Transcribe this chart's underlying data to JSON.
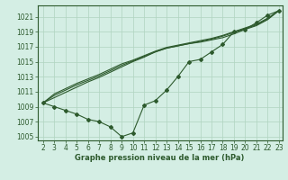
{
  "title": "Graphe pression niveau de la mer (hPa)",
  "background_color": "#d4eee4",
  "grid_color": "#b0d4c0",
  "line_color": "#2d5a2d",
  "marker_color": "#2d5a2d",
  "xlim": [
    2,
    23
  ],
  "ylim": [
    1004.5,
    1022.5
  ],
  "xticks": [
    2,
    3,
    4,
    5,
    6,
    7,
    8,
    9,
    10,
    11,
    12,
    13,
    14,
    15,
    16,
    17,
    18,
    19,
    20,
    21,
    22,
    23
  ],
  "yticks": [
    1005,
    1007,
    1009,
    1011,
    1013,
    1015,
    1017,
    1019,
    1021
  ],
  "x_main": [
    2,
    3,
    4,
    5,
    6,
    7,
    8,
    9,
    10,
    11,
    12,
    13,
    14,
    15,
    16,
    17,
    18,
    19,
    20,
    21,
    22,
    23
  ],
  "y_main": [
    1009.5,
    1009.0,
    1008.5,
    1008.0,
    1007.3,
    1007.0,
    1006.3,
    1005.0,
    1005.5,
    1009.2,
    1009.8,
    1011.2,
    1013.0,
    1015.0,
    1015.3,
    1016.3,
    1017.3,
    1019.0,
    1019.3,
    1020.2,
    1021.2,
    1021.8
  ],
  "straight_lines": [
    [
      1009.5,
      1010.2,
      1010.9,
      1011.6,
      1012.3,
      1012.9,
      1013.6,
      1014.3,
      1015.0,
      1015.6,
      1016.3,
      1016.8,
      1017.1,
      1017.4,
      1017.6,
      1017.9,
      1018.2,
      1018.7,
      1019.3,
      1019.8,
      1020.6,
      1021.8
    ],
    [
      1009.5,
      1010.5,
      1011.2,
      1011.9,
      1012.5,
      1013.1,
      1013.8,
      1014.5,
      1015.1,
      1015.7,
      1016.3,
      1016.8,
      1017.1,
      1017.4,
      1017.7,
      1018.0,
      1018.4,
      1018.9,
      1019.4,
      1019.9,
      1020.7,
      1021.8
    ],
    [
      1009.5,
      1010.7,
      1011.4,
      1012.1,
      1012.7,
      1013.3,
      1014.0,
      1014.7,
      1015.2,
      1015.8,
      1016.4,
      1016.9,
      1017.2,
      1017.5,
      1017.8,
      1018.1,
      1018.5,
      1019.0,
      1019.5,
      1020.0,
      1020.8,
      1021.8
    ]
  ]
}
